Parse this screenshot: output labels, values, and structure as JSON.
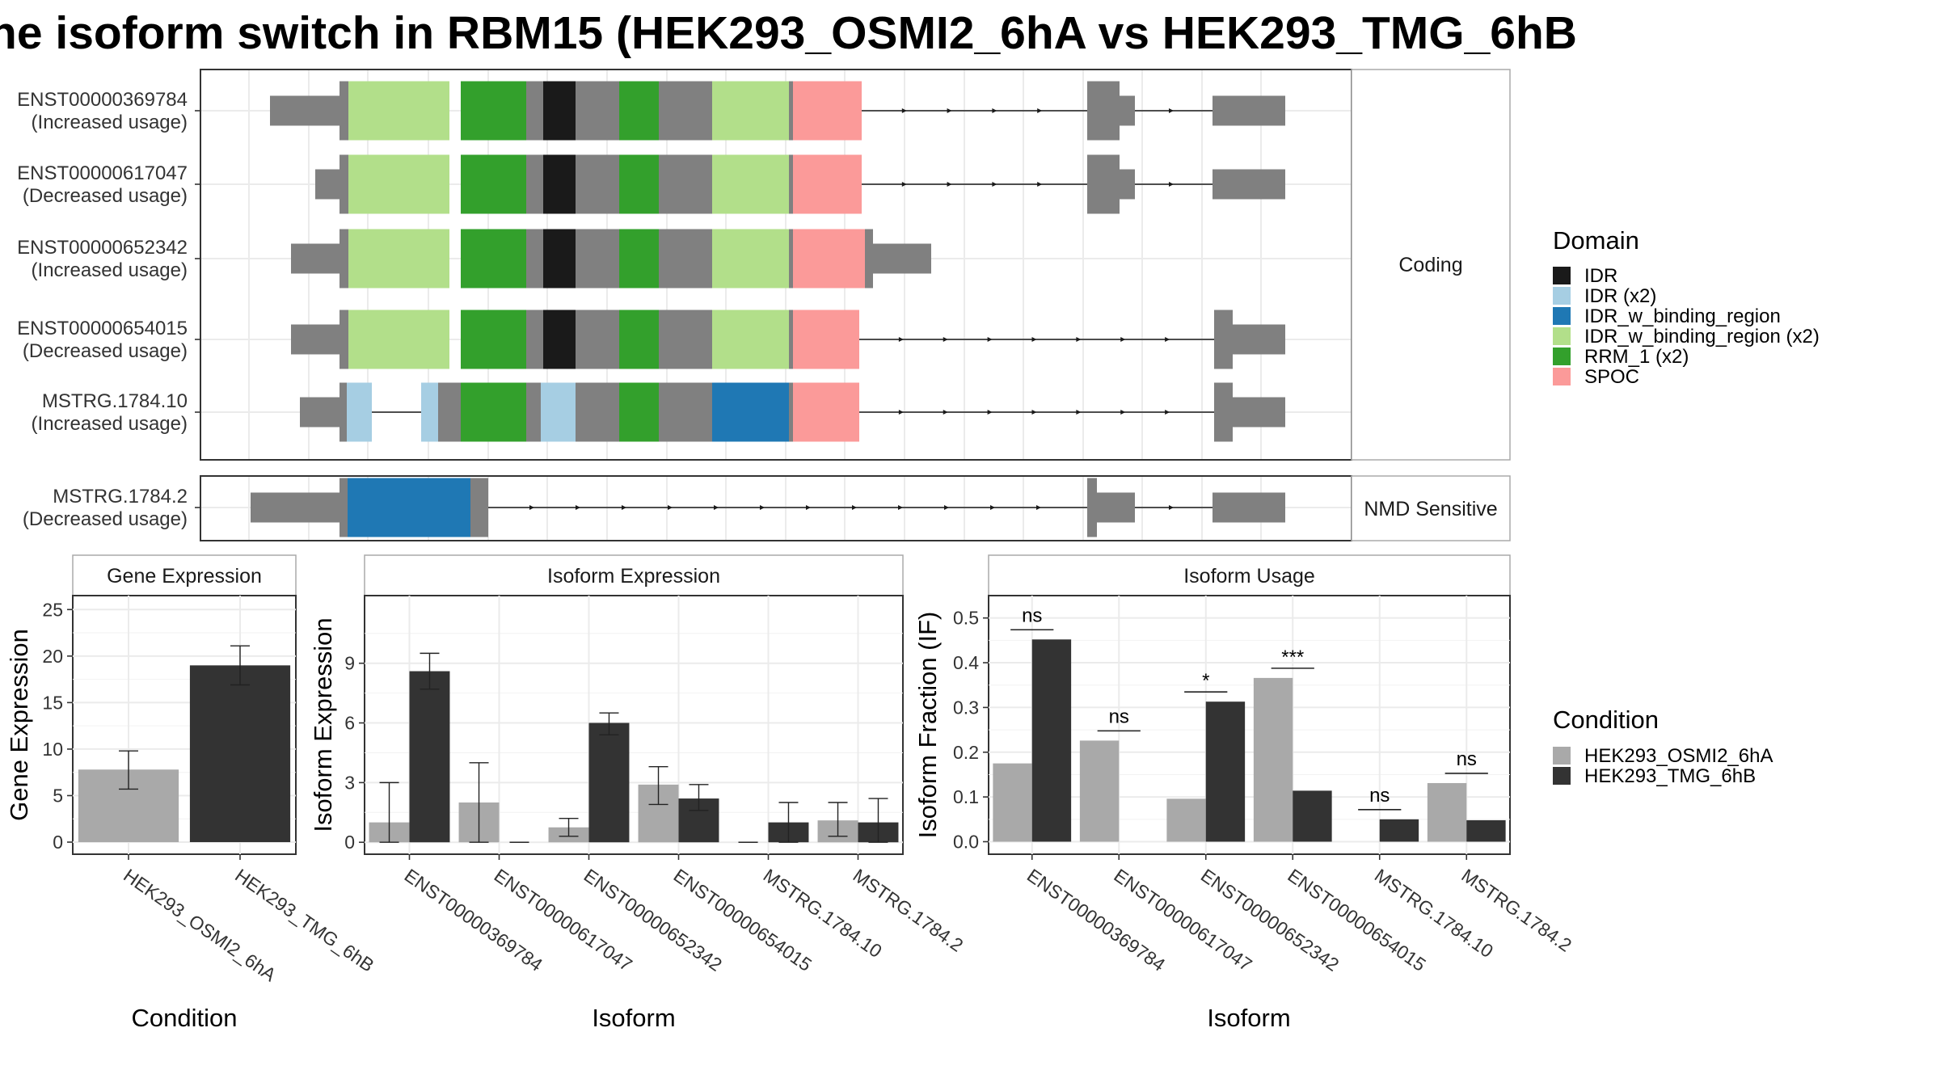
{
  "title": "he isoform switch in RBM15 (HEK293_OSMI2_6hA vs HEK293_TMG_6hB",
  "colors": {
    "utr": "#808080",
    "IDR": "#1a1a1a",
    "IDR (x2)": "#a6cee3",
    "IDR_w_binding_region": "#1f78b4",
    "IDR_w_binding_region (x2)": "#b2df8a",
    "RRM_1 (x2)": "#33a02c",
    "SPOC": "#fb9a99",
    "cond_a": "#a9a9a9",
    "cond_b": "#333333"
  },
  "panels": {
    "coding_label": "Coding",
    "nmd_label": "NMD Sensitive"
  },
  "isoforms": [
    {
      "id": "ENST00000369784",
      "usage": "(Increased usage)",
      "group": "coding"
    },
    {
      "id": "ENST00000617047",
      "usage": "(Decreased usage)",
      "group": "coding"
    },
    {
      "id": "ENST00000652342",
      "usage": "(Increased usage)",
      "group": "coding"
    },
    {
      "id": "ENST00000654015",
      "usage": "(Decreased usage)",
      "group": "coding"
    },
    {
      "id": "MSTRG.1784.10",
      "usage": "(Increased usage)",
      "group": "coding"
    },
    {
      "id": "MSTRG.1784.2",
      "usage": "(Decreased usage)",
      "group": "nmd"
    }
  ],
  "legend": {
    "domain_title": "Domain",
    "domains": [
      "IDR",
      "IDR (x2)",
      "IDR_w_binding_region",
      "IDR_w_binding_region (x2)",
      "RRM_1 (x2)",
      "SPOC"
    ],
    "condition_title": "Condition",
    "conditions": [
      "HEK293_OSMI2_6hA",
      "HEK293_TMG_6hB"
    ]
  },
  "chart_data": [
    {
      "type": "bar",
      "title": "Gene Expression",
      "xlabel": "Condition",
      "ylabel": "Gene Expression",
      "categories": [
        "HEK293_OSMI2_6hA",
        "HEK293_TMG_6hB"
      ],
      "values": [
        7.8,
        19.0
      ],
      "errors": [
        [
          5.7,
          9.8
        ],
        [
          16.9,
          21.1
        ]
      ],
      "ylim": [
        -1.3,
        26.5
      ],
      "yticks": [
        0,
        5,
        10,
        15,
        20,
        25
      ]
    },
    {
      "type": "bar",
      "title": "Isoform Expression",
      "xlabel": "Isoform",
      "ylabel": "Isoform Expression",
      "categories": [
        "ENST00000369784",
        "ENST00000617047",
        "ENST00000652342",
        "ENST00000654015",
        "MSTRG.1784.10",
        "MSTRG.1784.2"
      ],
      "series": [
        {
          "name": "HEK293_OSMI2_6hA",
          "values": [
            1.0,
            2.0,
            0.75,
            2.9,
            0.0,
            1.1
          ],
          "errors": [
            [
              0.0,
              3.0
            ],
            [
              0.0,
              4.0
            ],
            [
              0.3,
              1.2
            ],
            [
              1.9,
              3.8
            ],
            [
              0.0,
              0.0
            ],
            [
              0.3,
              2.0
            ]
          ]
        },
        {
          "name": "HEK293_TMG_6hB",
          "values": [
            8.6,
            0.0,
            6.0,
            2.2,
            1.0,
            1.0
          ],
          "errors": [
            [
              7.7,
              9.5
            ],
            [
              0.0,
              0.0
            ],
            [
              5.4,
              6.5
            ],
            [
              1.6,
              2.9
            ],
            [
              0.0,
              2.0
            ],
            [
              0.0,
              2.2
            ]
          ]
        }
      ],
      "ylim": [
        -0.6,
        12.4
      ],
      "yticks": [
        0,
        3,
        6,
        9
      ]
    },
    {
      "type": "bar",
      "title": "Isoform Usage",
      "xlabel": "Isoform",
      "ylabel": "Isoform Fraction (IF)",
      "categories": [
        "ENST00000369784",
        "ENST00000617047",
        "ENST00000652342",
        "ENST00000654015",
        "MSTRG.1784.10",
        "MSTRG.1784.2"
      ],
      "series": [
        {
          "name": "HEK293_OSMI2_6hA",
          "values": [
            0.175,
            0.226,
            0.096,
            0.366,
            0.0,
            0.131
          ]
        },
        {
          "name": "HEK293_TMG_6hB",
          "values": [
            0.452,
            0.0,
            0.313,
            0.114,
            0.05,
            0.048
          ]
        }
      ],
      "significance": [
        "ns",
        "ns",
        "*",
        "***",
        "ns",
        "ns"
      ],
      "ylim": [
        -0.028,
        0.55
      ],
      "yticks": [
        0.0,
        0.1,
        0.2,
        0.3,
        0.4,
        0.5
      ],
      "yticklabels": [
        "0.0",
        "0.1",
        "0.2",
        "0.3",
        "0.4",
        "0.5"
      ]
    }
  ]
}
